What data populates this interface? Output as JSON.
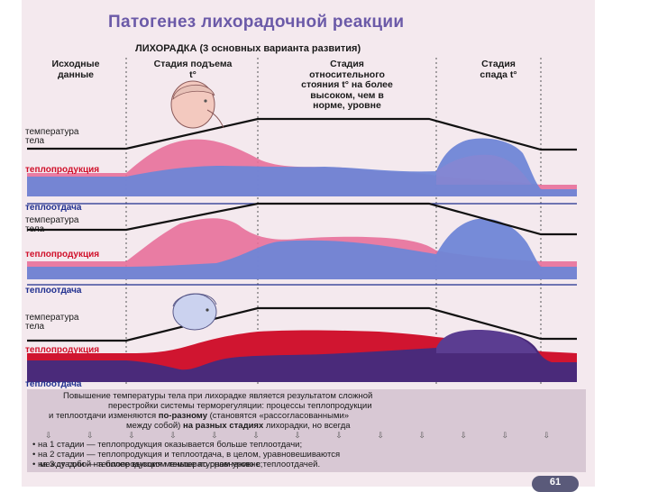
{
  "title": "Патогенез лихорадочной реакции",
  "subtitle": "ЛИХОРАДКА (3 основных варианта развития)",
  "columns": {
    "initial": "Исходные данные",
    "rise": "Стадия подъема t°",
    "plateau": "Стадия относительного стояния t° на более высоком, чем в норме, уровне",
    "fall": "Стадия спада t°"
  },
  "columns_lines": {
    "initial": [
      "Исходные",
      "данные"
    ],
    "rise": [
      "Стадия подъема",
      "t°"
    ],
    "plateau": [
      "Стадия",
      "относительного",
      "стояния t° на более",
      "высоком, чем в",
      "норме, уровне"
    ],
    "fall": [
      "Стадия",
      "спада t°"
    ]
  },
  "labels": {
    "temperature_l1": "температура",
    "temperature_l2": "тела",
    "heat_production": "теплопродукция",
    "heat_loss": "теплоотдача"
  },
  "footer": {
    "line1": "Повышение температуры тела при лихорадке является результатом сложной",
    "line2": "перестройки системы терморегуляции: процессы теплопродукции",
    "line3a": "и теплоотдачи изменяются ",
    "line3b": "по-разному",
    "line3c": " (становятся «рассогласованными»",
    "line4a": "между собой) ",
    "line4b": "на разных стадиях",
    "line4c": " лихорадки, но всегда",
    "arrows": "⇩ ⇩ ⇩ ⇩ ⇩ ⇩ ⇩ ⇩ ⇩ ⇩ ⇩ ⇩ ⇩",
    "bullet1": "• на 1 стадии — теплопродукция оказывается больше теплоотдачи;",
    "bullet2": "• на 2 стадии — теплопродукция и теплоотдача, в целом, уравновешиваются",
    "bullet2b": "между собой на более высоком температурном уровне;",
    "bullet3": "• на 3 стадии — теплопродукция меньше по сравнению с теплоотдачей."
  },
  "page_number": "61",
  "colors": {
    "title": "#6b5aa8",
    "pink": "#e8709a",
    "blue": "#6f86d6",
    "red": "#d01530",
    "purple": "#4a2a7a",
    "navy": "#1f2f8f"
  }
}
